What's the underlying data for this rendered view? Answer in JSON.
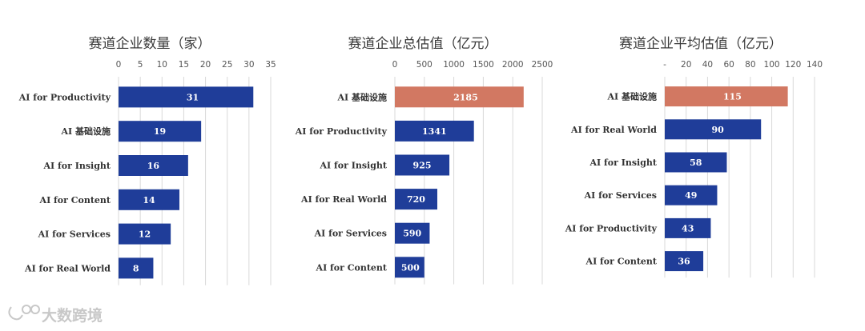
{
  "chart_data": [
    {
      "type": "bar",
      "orientation": "horizontal",
      "title": "赛道企业数量（家）",
      "categories": [
        "AI for Productivity",
        "AI 基础设施",
        "AI for Insight",
        "AI for Content",
        "AI for Services",
        "AI for Real World"
      ],
      "values": [
        31,
        19,
        16,
        14,
        12,
        8
      ],
      "xlim": [
        0,
        35
      ],
      "ticks": [
        "0",
        "5",
        "10",
        "15",
        "20",
        "25",
        "30",
        "35"
      ],
      "grid": true,
      "highlight_category": null
    },
    {
      "type": "bar",
      "orientation": "horizontal",
      "title": "赛道企业总估值（亿元）",
      "categories": [
        "AI 基础设施",
        "AI for Productivity",
        "AI for Insight",
        "AI for Real World",
        "AI for Services",
        "AI for Content"
      ],
      "values": [
        2185,
        1341,
        925,
        720,
        590,
        500
      ],
      "xlim": [
        0,
        2500
      ],
      "ticks": [
        "0",
        "500",
        "1000",
        "1500",
        "2000",
        "2500"
      ],
      "grid": true,
      "highlight_category": "AI 基础设施"
    },
    {
      "type": "bar",
      "orientation": "horizontal",
      "title": "赛道企业平均估值（亿元）",
      "categories": [
        "AI 基础设施",
        "AI for Real World",
        "AI for Insight",
        "AI for Services",
        "AI for Productivity",
        "AI for Content"
      ],
      "values": [
        115,
        90,
        58,
        49,
        43,
        36
      ],
      "xlim": [
        0,
        140
      ],
      "ticks": [
        "-",
        "20",
        "40",
        "60",
        "80",
        "100",
        "120",
        "140"
      ],
      "grid": true,
      "highlight_category": "AI 基础设施"
    }
  ],
  "colors": {
    "bar": "#1f3d99",
    "highlight": "#d27862",
    "grid": "#d9d9d9"
  },
  "watermark": {
    "text": "大数跨境",
    "icon": "brand-logo-icon"
  }
}
